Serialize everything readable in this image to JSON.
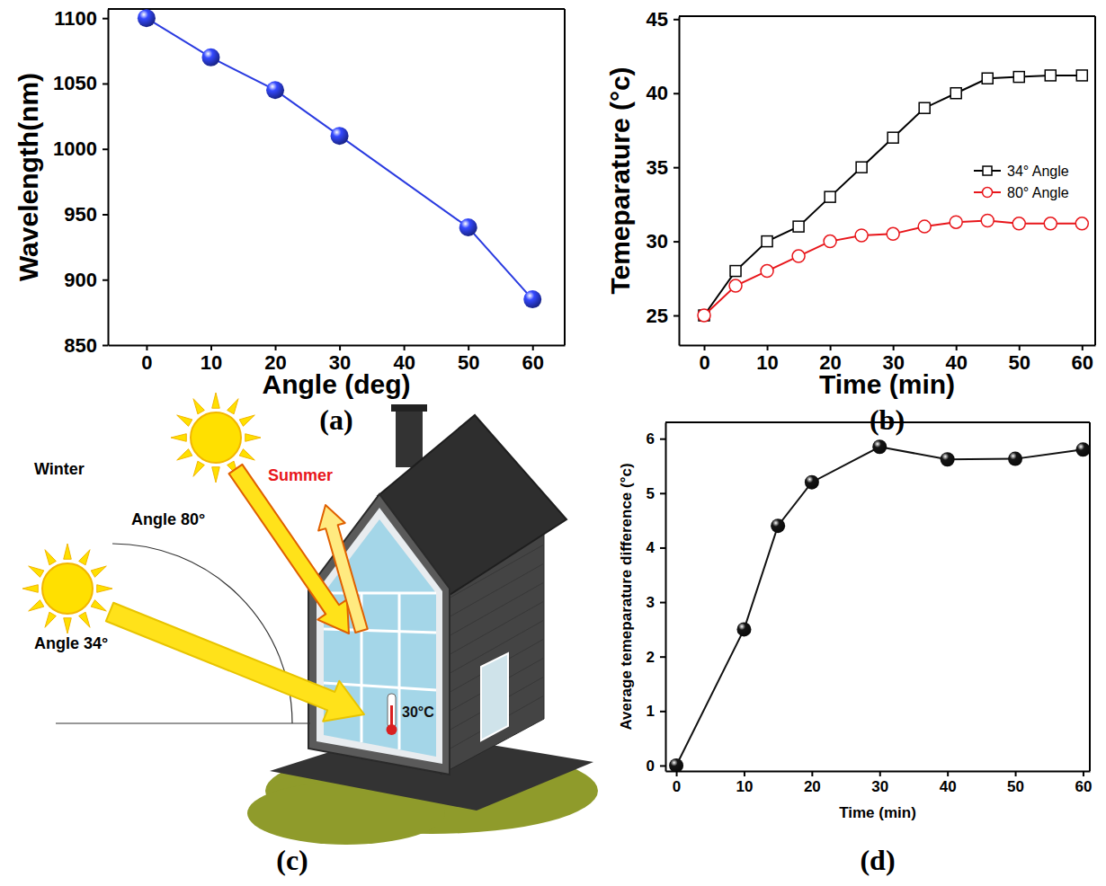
{
  "chart_data": [
    {
      "type": "line",
      "title": "(a)",
      "x_label": "Angle (deg)",
      "y_label": "Wavelength(nm)",
      "x": [
        0,
        10,
        20,
        30,
        50,
        60
      ],
      "values": [
        1100,
        1070,
        1045,
        1010,
        940,
        885
      ],
      "color": "#2a3be0",
      "marker": "sphere",
      "line_style": "solid",
      "xlim": [
        -6,
        65
      ],
      "xticks": [
        0,
        10,
        20,
        30,
        40,
        50,
        60
      ],
      "ylim": [
        850,
        1107
      ],
      "yticks": [
        850,
        900,
        950,
        1000,
        1050,
        1100
      ],
      "grid": false
    },
    {
      "type": "line",
      "title": "(b)",
      "x_label": "Time (min)",
      "y_label": "Temeparature (°c)",
      "x": [
        0,
        5,
        10,
        15,
        20,
        25,
        30,
        35,
        40,
        45,
        50,
        55,
        60
      ],
      "series": [
        {
          "name": "34° Angle",
          "color": "#000000",
          "marker": "open-square",
          "line_style": "solid",
          "values": [
            25,
            28,
            30,
            31,
            33,
            35,
            37,
            39,
            40,
            41,
            41.1,
            41.2,
            41.2
          ]
        },
        {
          "name": "80° Angle",
          "color": "#e8161b",
          "marker": "open-circle",
          "line_style": "solid",
          "values": [
            25,
            27,
            28,
            29,
            30,
            30.4,
            30.5,
            31,
            31.3,
            31.4,
            31.2,
            31.2,
            31.2
          ]
        }
      ],
      "xlim": [
        -4,
        62.1
      ],
      "xticks": [
        0,
        10,
        20,
        30,
        40,
        50,
        60
      ],
      "ylim": [
        23,
        45.2
      ],
      "yticks": [
        25,
        30,
        35,
        40,
        45
      ],
      "grid": false,
      "legend": "right"
    },
    {
      "type": "line",
      "title": "(d)",
      "x_label": "Time (min)",
      "y_label": "Average temeparature difference (°c)",
      "x": [
        0,
        10,
        15,
        20,
        30,
        40,
        50,
        60
      ],
      "values": [
        0,
        2.5,
        4.4,
        5.2,
        5.85,
        5.62,
        5.63,
        5.8
      ],
      "color": "#111111",
      "marker": "sphere",
      "line_style": "solid",
      "xlim": [
        -1.6,
        61
      ],
      "xticks": [
        0,
        10,
        20,
        30,
        40,
        50,
        60
      ],
      "ylim": [
        -0.1,
        6.3
      ],
      "yticks": [
        0,
        1,
        2,
        3,
        4,
        5,
        6
      ],
      "grid": false
    }
  ],
  "diagram": {
    "title": "(c)",
    "summer": "Summer",
    "winter": "Winter",
    "summer_angle": "Angle 80°",
    "winter_angle": "Angle 34°",
    "indoor_temperature": "30°C"
  }
}
